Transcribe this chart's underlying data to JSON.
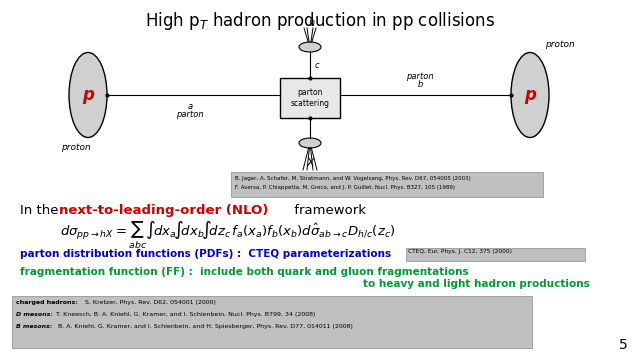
{
  "title": "High p$_T$ hadron production in pp collisions",
  "bg_color": "#ffffff",
  "nlo_intro": "In the ",
  "nlo_red": "next-to-leading-order (NLO)",
  "nlo_end": " framework",
  "pdf_blue": "parton distribution functions (PDFs) :  CTEQ parameterizations",
  "pdf_ref_box": "CTEQ, Eur. Phys. J. C12, 375 (2000)",
  "ff_green_line1": "fragmentation function (FF) :  include both quark and gluon fragmentations",
  "ff_green_line2": "to heavy and light hadron productions",
  "ref1": "B. Jager, A. Schafer, M. Stratmann, and W. Vogelsang, Phys. Rev. D67, 054005 (2003)",
  "ref2": "F. Aversa, P. Chiappetta, M. Greco, and J. P. Guillet, Nucl. Phys. B327, 105 (1989)",
  "bottom_ref_label1": "charged hadrons:",
  "bottom_ref1": " S. Kretzer, Phys. Rev. D62, 054001 (2000)",
  "bottom_ref_label2": "D mesons:",
  "bottom_ref2": "  T. Kneesch, B. A. Kniehl, G. Kramer, and I. Schienbein, Nucl. Phys. B799, 34 (2008)",
  "bottom_ref_label3": "B mesons:",
  "bottom_ref3": "  B. A. Kniehl, G. Kramer, and I. Schienbein, and H. Spiesberger, Phys. Rev. D77, 014011 (2008)",
  "page_num": "5"
}
